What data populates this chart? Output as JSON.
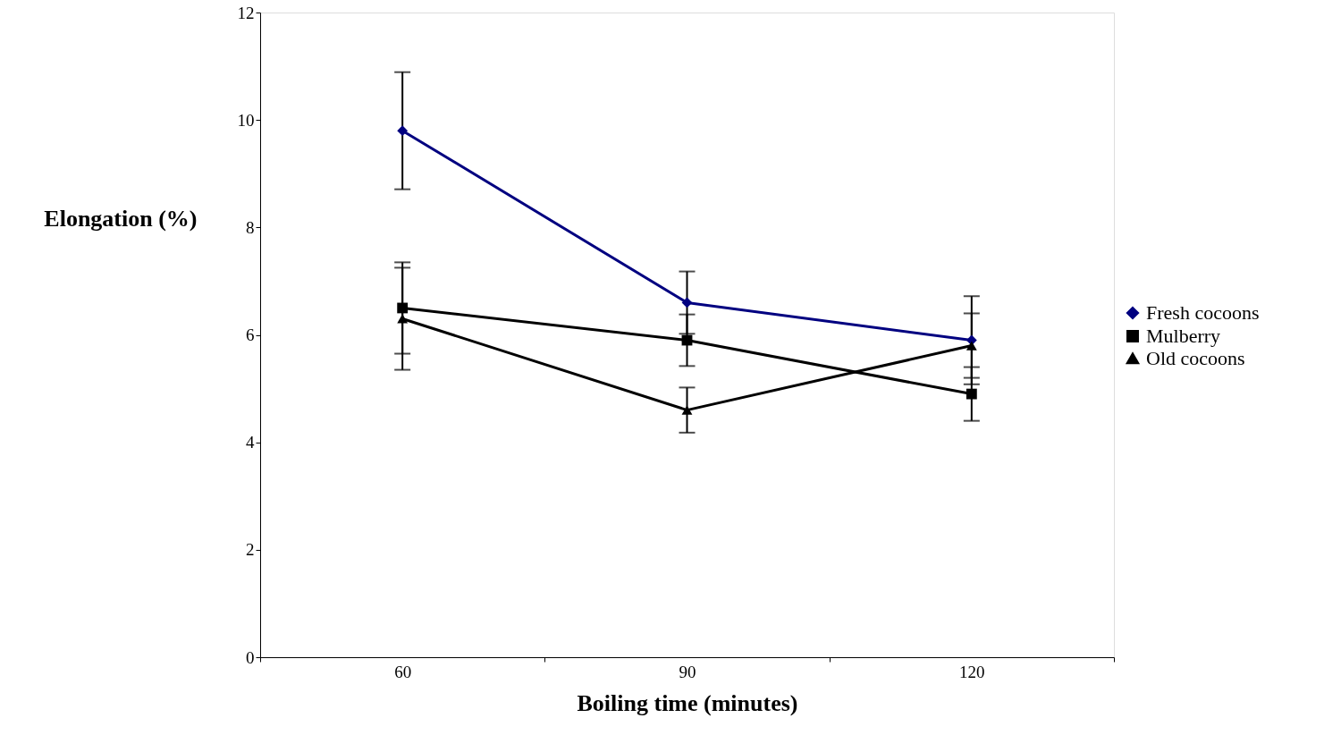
{
  "chart_data": {
    "type": "line",
    "xlabel": "Boiling time (minutes)",
    "ylabel": "Elongation (%)",
    "categories": [
      "60",
      "90",
      "120"
    ],
    "ylim": [
      0,
      12
    ],
    "yticks": [
      0,
      2,
      4,
      6,
      8,
      10,
      12
    ],
    "grid": false,
    "legend": "right",
    "line_style": "solid",
    "series": [
      {
        "name": "Fresh cocoons",
        "color": "#000080",
        "marker": "diamond",
        "values": [
          9.8,
          6.6,
          5.9
        ],
        "errors": [
          1.09,
          0.58,
          0.82
        ]
      },
      {
        "name": "Mulberry",
        "color": "#000000",
        "marker": "square",
        "values": [
          6.5,
          5.9,
          4.9
        ],
        "errors": [
          0.85,
          0.48,
          0.5
        ]
      },
      {
        "name": "Old cocoons",
        "color": "#000000",
        "marker": "triangle",
        "values": [
          6.3,
          4.6,
          5.8
        ],
        "errors": [
          0.95,
          0.42,
          0.6
        ]
      }
    ]
  }
}
